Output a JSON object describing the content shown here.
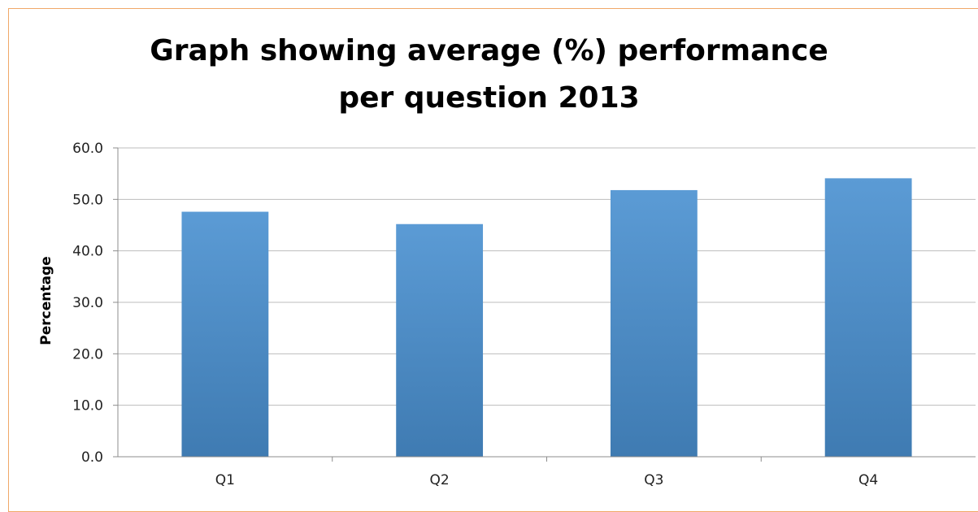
{
  "chart_data": {
    "type": "bar",
    "title": "Graph showing average (%) performance per question 2013",
    "xlabel": "",
    "ylabel": "Percentage",
    "categories": [
      "Q1",
      "Q2",
      "Q3",
      "Q4"
    ],
    "values": [
      47.6,
      45.2,
      51.8,
      54.1
    ],
    "ylim": [
      0,
      60
    ],
    "yticks": [
      "0.0",
      "10.0",
      "20.0",
      "30.0",
      "40.0",
      "50.0",
      "60.0"
    ],
    "grid": true,
    "legend": "none",
    "bar_color_top": "#5b9bd5",
    "bar_color_bottom": "#3f7bb2"
  }
}
